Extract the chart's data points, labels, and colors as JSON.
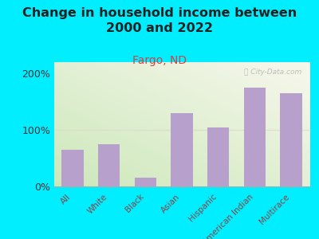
{
  "categories": [
    "All",
    "White",
    "Black",
    "Asian",
    "Hispanic",
    "American Indian",
    "Multirace"
  ],
  "values": [
    65,
    75,
    15,
    130,
    105,
    175,
    165
  ],
  "bar_color": "#b8a0cc",
  "title": "Change in household income between\n2000 and 2022",
  "subtitle": "Fargo, ND",
  "subtitle_color": "#cc4444",
  "title_fontsize": 11.5,
  "subtitle_fontsize": 10,
  "xlabel_color": "#884444",
  "ylabel_color": "#333333",
  "background_color": "#00eeff",
  "plot_bg_color_tl": "#cce8bb",
  "plot_bg_color_br": "#f8f8ee",
  "ylim": [
    0,
    220
  ],
  "yticks": [
    0,
    100,
    200
  ],
  "ytick_labels": [
    "0%",
    "100%",
    "200%"
  ],
  "watermark": "ⓘ City-Data.com",
  "grid_color": "#ddddcc"
}
